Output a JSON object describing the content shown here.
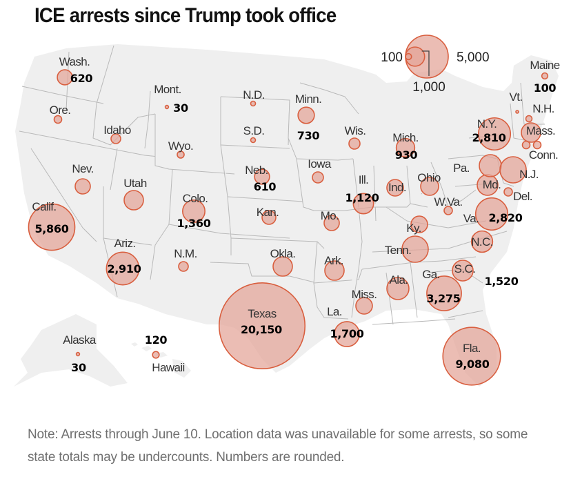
{
  "title": "ICE arrests since Trump took office",
  "note": "Note: Arrests through June 10. Location data was unavailable for some arrests, so some state totals may be undercounts. Numbers are rounded.",
  "colors": {
    "bubble_fill": "#e3a497",
    "bubble_stroke": "#d95f3f",
    "land": "#efefef",
    "border": "#b9b9b9"
  },
  "legend": {
    "values": [
      100,
      1000,
      5000
    ],
    "labels": [
      "100",
      "1,000",
      "5,000"
    ]
  },
  "chart_data": {
    "type": "bubble-map",
    "title": "ICE arrests since Trump took office",
    "size_legend": [
      100,
      1000,
      5000
    ],
    "states": [
      {
        "id": "wa",
        "name": "Wash.",
        "value": 620,
        "value_label": "620"
      },
      {
        "id": "or",
        "name": "Ore.",
        "value": null,
        "value_label": ""
      },
      {
        "id": "ca",
        "name": "Calif.",
        "value": 5860,
        "value_label": "5,860"
      },
      {
        "id": "nv",
        "name": "Nev.",
        "value": null,
        "value_label": ""
      },
      {
        "id": "id",
        "name": "Idaho",
        "value": null,
        "value_label": ""
      },
      {
        "id": "mt",
        "name": "Mont.",
        "value": 30,
        "value_label": "30"
      },
      {
        "id": "wy",
        "name": "Wyo.",
        "value": null,
        "value_label": ""
      },
      {
        "id": "ut",
        "name": "Utah",
        "value": null,
        "value_label": ""
      },
      {
        "id": "az",
        "name": "Ariz.",
        "value": 2910,
        "value_label": "2,910"
      },
      {
        "id": "co",
        "name": "Colo.",
        "value": 1360,
        "value_label": "1,360"
      },
      {
        "id": "nm",
        "name": "N.M.",
        "value": null,
        "value_label": ""
      },
      {
        "id": "nd",
        "name": "N.D.",
        "value": null,
        "value_label": ""
      },
      {
        "id": "sd",
        "name": "S.D.",
        "value": null,
        "value_label": ""
      },
      {
        "id": "ne",
        "name": "Neb.",
        "value": 610,
        "value_label": "610"
      },
      {
        "id": "ks",
        "name": "Kan.",
        "value": null,
        "value_label": ""
      },
      {
        "id": "ok",
        "name": "Okla.",
        "value": null,
        "value_label": ""
      },
      {
        "id": "tx",
        "name": "Texas",
        "value": 20150,
        "value_label": "20,150"
      },
      {
        "id": "mn",
        "name": "Minn.",
        "value": 730,
        "value_label": "730"
      },
      {
        "id": "ia",
        "name": "Iowa",
        "value": null,
        "value_label": ""
      },
      {
        "id": "mo",
        "name": "Mo.",
        "value": null,
        "value_label": ""
      },
      {
        "id": "ar",
        "name": "Ark.",
        "value": null,
        "value_label": ""
      },
      {
        "id": "la",
        "name": "La.",
        "value": 1700,
        "value_label": "1,700"
      },
      {
        "id": "wi",
        "name": "Wis.",
        "value": null,
        "value_label": ""
      },
      {
        "id": "il",
        "name": "Ill.",
        "value": 1120,
        "value_label": "1,120"
      },
      {
        "id": "mi",
        "name": "Mich.",
        "value": 930,
        "value_label": "930"
      },
      {
        "id": "in",
        "name": "Ind.",
        "value": null,
        "value_label": ""
      },
      {
        "id": "oh",
        "name": "Ohio",
        "value": null,
        "value_label": ""
      },
      {
        "id": "ky",
        "name": "Ky.",
        "value": null,
        "value_label": ""
      },
      {
        "id": "tn",
        "name": "Tenn.",
        "value": null,
        "value_label": ""
      },
      {
        "id": "ms",
        "name": "Miss.",
        "value": null,
        "value_label": ""
      },
      {
        "id": "al",
        "name": "Ala.",
        "value": null,
        "value_label": ""
      },
      {
        "id": "ga",
        "name": "Ga.",
        "value": 3275,
        "value_label": "3,275"
      },
      {
        "id": "fl",
        "name": "Fla.",
        "value": 9080,
        "value_label": "9,080"
      },
      {
        "id": "sc",
        "name": "S.C.",
        "value": null,
        "value_label": ""
      },
      {
        "id": "nc",
        "name": "N.C.",
        "value": 1520,
        "value_label": "1,520"
      },
      {
        "id": "va",
        "name": "Va.",
        "value": 2820,
        "value_label": "2,820"
      },
      {
        "id": "wv",
        "name": "W.Va.",
        "value": null,
        "value_label": ""
      },
      {
        "id": "md",
        "name": "Md.",
        "value": null,
        "value_label": ""
      },
      {
        "id": "de",
        "name": "Del.",
        "value": null,
        "value_label": ""
      },
      {
        "id": "pa",
        "name": "Pa.",
        "value": null,
        "value_label": ""
      },
      {
        "id": "nj",
        "name": "N.J.",
        "value": null,
        "value_label": ""
      },
      {
        "id": "ny",
        "name": "N.Y.",
        "value": 2810,
        "value_label": "2,810"
      },
      {
        "id": "ct",
        "name": "Conn.",
        "value": null,
        "value_label": ""
      },
      {
        "id": "ma",
        "name": "Mass.",
        "value": null,
        "value_label": ""
      },
      {
        "id": "vt",
        "name": "Vt.",
        "value": null,
        "value_label": ""
      },
      {
        "id": "nh",
        "name": "N.H.",
        "value": null,
        "value_label": ""
      },
      {
        "id": "me",
        "name": "Maine",
        "value": 100,
        "value_label": "100"
      },
      {
        "id": "ak",
        "name": "Alaska",
        "value": 30,
        "value_label": "30"
      },
      {
        "id": "hi",
        "name": "Hawaii",
        "value": 120,
        "value_label": "120"
      }
    ]
  }
}
